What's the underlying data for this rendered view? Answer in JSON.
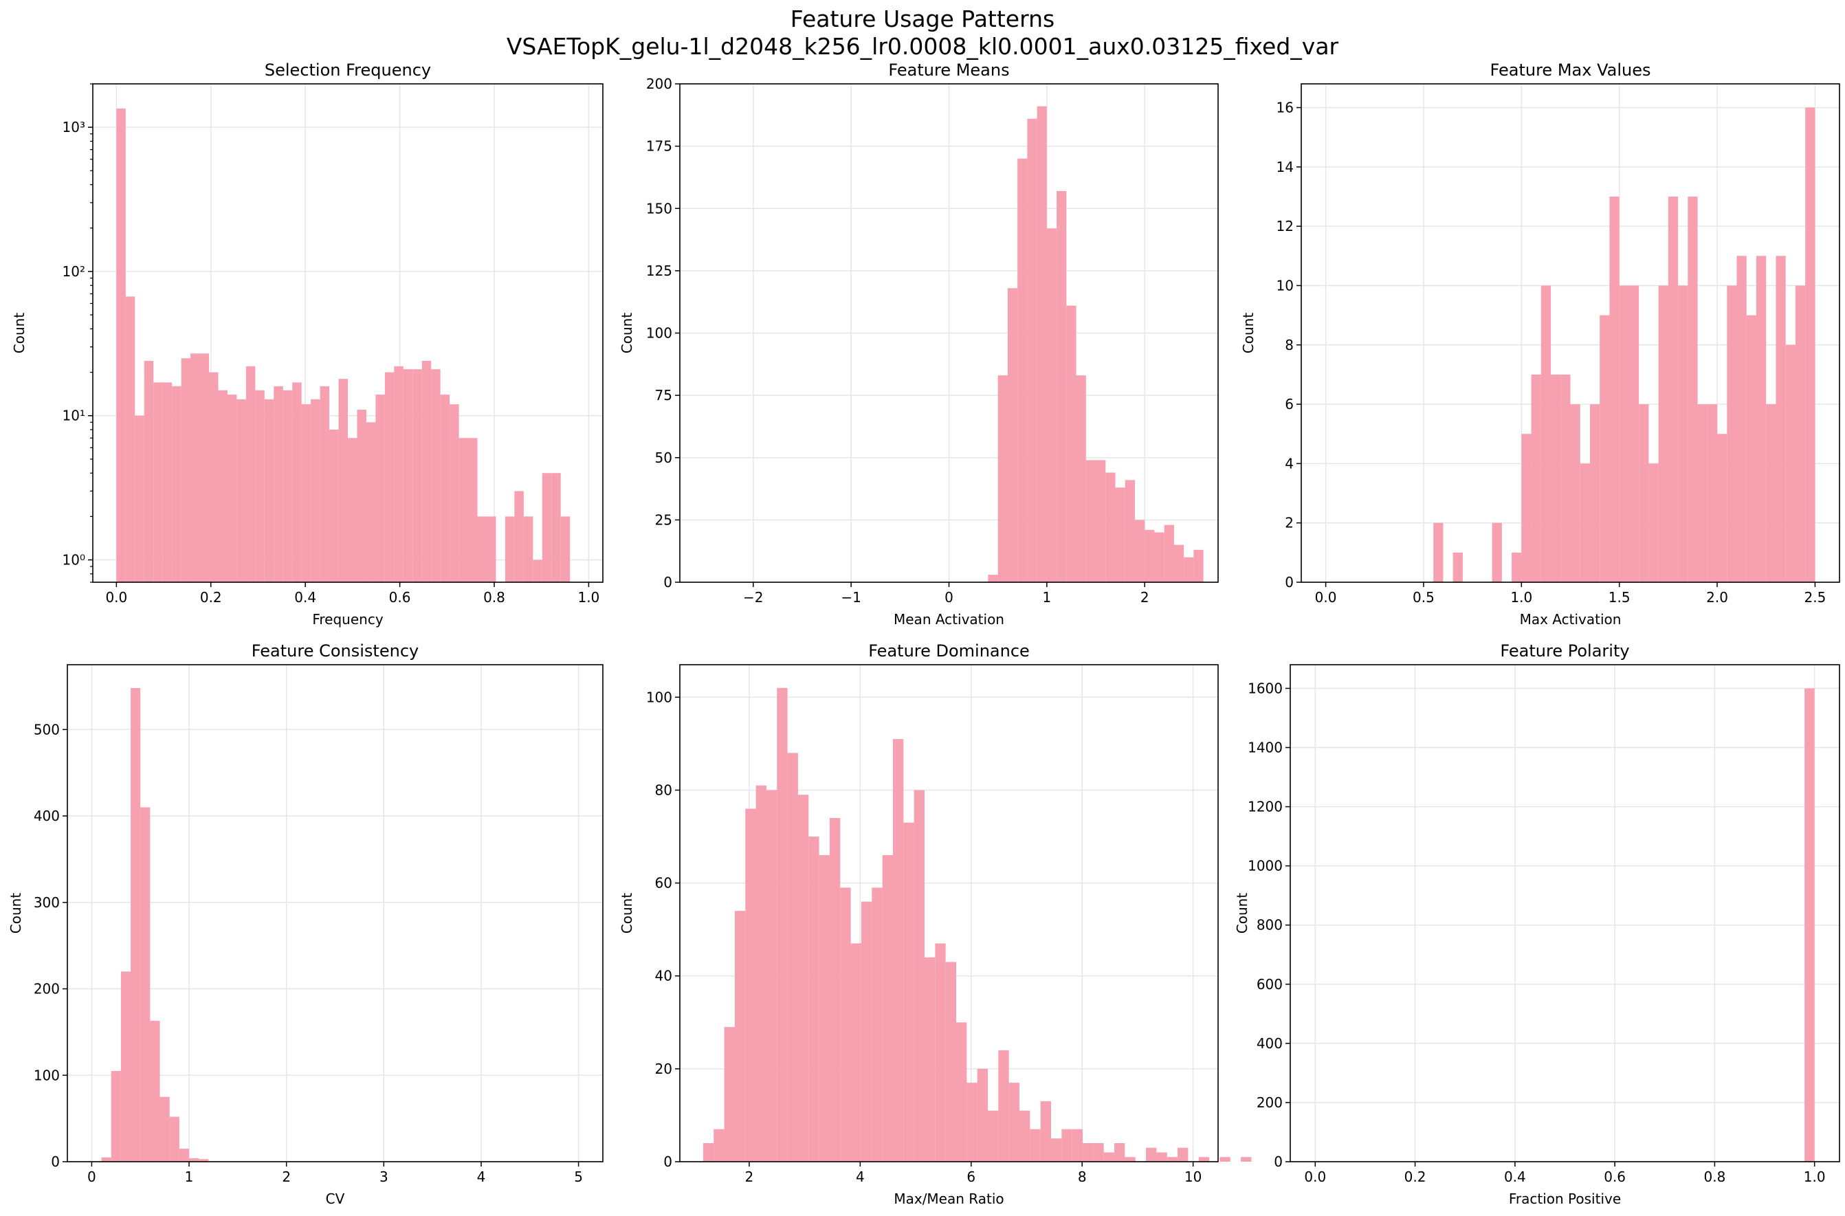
{
  "figure": {
    "title_line1": "Feature Usage Patterns",
    "title_line2": "VSAETopK_gelu-1l_d2048_k256_lr0.0008_kl0.0001_aux0.03125_fixed_var"
  },
  "style": {
    "bar_color": "#f7a0b0",
    "grid_color": "#e6e6e6",
    "axis_color": "#000000"
  },
  "chart_data": [
    {
      "type": "bar",
      "title": "Selection Frequency",
      "xlabel": "Frequency",
      "ylabel": "Count",
      "yscale": "log",
      "grid": true,
      "xlim": [
        -0.05,
        1.03
      ],
      "ylim": [
        0.7,
        2000
      ],
      "xticks": [
        0.0,
        0.2,
        0.4,
        0.6,
        0.8,
        1.0
      ],
      "xtick_labels": [
        "0.0",
        "0.2",
        "0.4",
        "0.6",
        "0.8",
        "1.0"
      ],
      "yticks": [
        1,
        10,
        100,
        1000
      ],
      "ytick_labels": [
        "10⁰",
        "10¹",
        "10²",
        "10³"
      ],
      "bin_start": 0.0,
      "bin_width": 0.0196,
      "values": [
        1350,
        67,
        10,
        24,
        17,
        17,
        16,
        25,
        27,
        27,
        20,
        15,
        14,
        13,
        22,
        15,
        13,
        16,
        15,
        17,
        12,
        13,
        16,
        8,
        18,
        7,
        11,
        9,
        14,
        20,
        22,
        21,
        21,
        24,
        21,
        14,
        12,
        7,
        7,
        2,
        2,
        0,
        2,
        3,
        2,
        1,
        4,
        4,
        2,
        0
      ]
    },
    {
      "type": "bar",
      "title": "Feature Means",
      "xlabel": "Mean Activation",
      "ylabel": "Count",
      "grid": true,
      "xlim": [
        -2.75,
        2.75
      ],
      "ylim": [
        0,
        200
      ],
      "xticks": [
        -2,
        -1,
        0,
        1,
        2
      ],
      "xtick_labels": [
        "−2",
        "−1",
        "0",
        "1",
        "2"
      ],
      "yticks": [
        0,
        25,
        50,
        75,
        100,
        125,
        150,
        175,
        200
      ],
      "ytick_labels": [
        "0",
        "25",
        "50",
        "75",
        "100",
        "125",
        "150",
        "175",
        "200"
      ],
      "bin_start": 0.4,
      "bin_width": 0.1,
      "values": [
        3,
        83,
        118,
        170,
        186,
        191,
        142,
        157,
        111,
        83,
        49,
        49,
        44,
        38,
        41,
        25,
        21,
        20,
        23,
        15,
        10,
        13
      ]
    },
    {
      "type": "bar",
      "title": "Feature Max Values",
      "xlabel": "Max Activation",
      "ylabel": "Count",
      "grid": true,
      "xlim": [
        -0.125,
        2.625
      ],
      "ylim": [
        0,
        16.8
      ],
      "xticks": [
        0.0,
        0.5,
        1.0,
        1.5,
        2.0,
        2.5
      ],
      "xtick_labels": [
        "0.0",
        "0.5",
        "1.0",
        "1.5",
        "2.0",
        "2.5"
      ],
      "yticks": [
        0,
        2,
        4,
        6,
        8,
        10,
        12,
        14,
        16
      ],
      "ytick_labels": [
        "0",
        "2",
        "4",
        "6",
        "8",
        "10",
        "12",
        "14",
        "16"
      ],
      "bin_start": 0.0,
      "bin_width": 0.05,
      "values": [
        0,
        0,
        0,
        0,
        0,
        0,
        0,
        0,
        0,
        0,
        0,
        2,
        0,
        1,
        0,
        0,
        0,
        2,
        0,
        1,
        5,
        7,
        10,
        7,
        7,
        6,
        4,
        6,
        9,
        13,
        10,
        10,
        6,
        4,
        10,
        13,
        10,
        13,
        6,
        6,
        5,
        10,
        11,
        9,
        11,
        6,
        11,
        8,
        10,
        16
      ]
    },
    {
      "type": "bar",
      "title": "Feature Consistency",
      "xlabel": "CV",
      "ylabel": "Count",
      "grid": true,
      "xlim": [
        -0.25,
        5.25
      ],
      "ylim": [
        0,
        575
      ],
      "xticks": [
        0,
        1,
        2,
        3,
        4,
        5
      ],
      "xtick_labels": [
        "0",
        "1",
        "2",
        "3",
        "4",
        "5"
      ],
      "yticks": [
        0,
        100,
        200,
        300,
        400,
        500
      ],
      "ytick_labels": [
        "0",
        "100",
        "200",
        "300",
        "400",
        "500"
      ],
      "bin_start": 0.1,
      "bin_width": 0.1,
      "values": [
        5,
        105,
        220,
        548,
        410,
        163,
        75,
        52,
        15,
        4,
        3
      ]
    },
    {
      "type": "bar",
      "title": "Feature Dominance",
      "xlabel": "Max/Mean Ratio",
      "ylabel": "Count",
      "grid": true,
      "xlim": [
        0.75,
        10.45
      ],
      "ylim": [
        0,
        107
      ],
      "xticks": [
        2,
        4,
        6,
        8,
        10
      ],
      "xtick_labels": [
        "2",
        "4",
        "6",
        "8",
        "10"
      ],
      "yticks": [
        0,
        20,
        40,
        60,
        80,
        100
      ],
      "ytick_labels": [
        "0",
        "20",
        "40",
        "60",
        "80",
        "100"
      ],
      "bin_start": 1.17,
      "bin_width": 0.19,
      "values": [
        4,
        7,
        29,
        54,
        76,
        81,
        80,
        102,
        88,
        79,
        70,
        66,
        74,
        59,
        47,
        56,
        59,
        66,
        91,
        73,
        80,
        44,
        47,
        43,
        30,
        17,
        20,
        11,
        24,
        17,
        11,
        7,
        13,
        5,
        7,
        7,
        4,
        4,
        2,
        4,
        1,
        0,
        3,
        2,
        1,
        3,
        0,
        1,
        0,
        1,
        0,
        1
      ]
    },
    {
      "type": "bar",
      "title": "Feature Polarity",
      "xlabel": "Fraction Positive",
      "ylabel": "Count",
      "grid": true,
      "xlim": [
        -0.05,
        1.05
      ],
      "ylim": [
        0,
        1680
      ],
      "xticks": [
        0.0,
        0.2,
        0.4,
        0.6,
        0.8,
        1.0
      ],
      "xtick_labels": [
        "0.0",
        "0.2",
        "0.4",
        "0.6",
        "0.8",
        "1.0"
      ],
      "yticks": [
        0,
        200,
        400,
        600,
        800,
        1000,
        1200,
        1400,
        1600
      ],
      "ytick_labels": [
        "0",
        "200",
        "400",
        "600",
        "800",
        "1000",
        "1200",
        "1400",
        "1600"
      ],
      "bin_start": 0.98,
      "bin_width": 0.02,
      "values": [
        1600
      ]
    }
  ]
}
